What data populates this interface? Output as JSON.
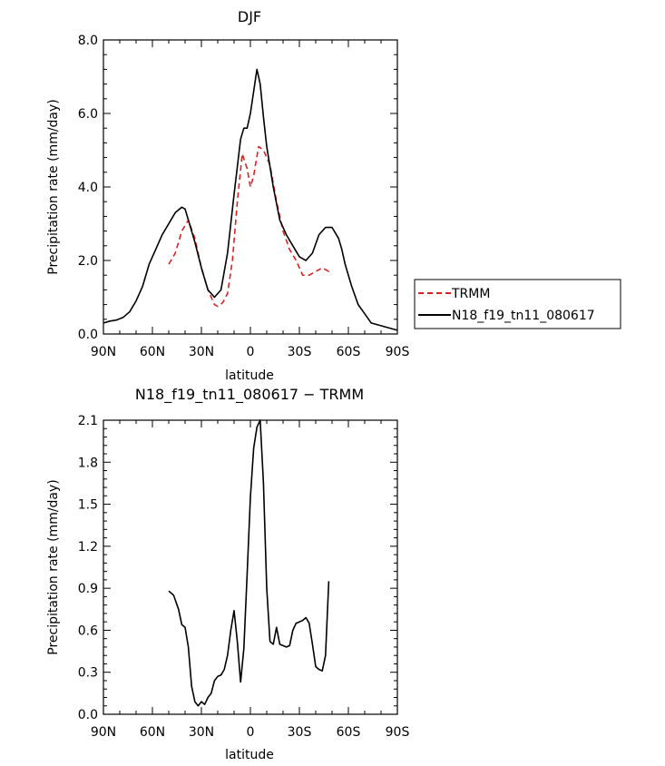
{
  "chart_data": [
    {
      "type": "line",
      "title": "DJF",
      "xlabel": "latitude",
      "ylabel": "Precipitation rate (mm/day)",
      "x_ticks": [
        "90N",
        "60N",
        "30N",
        "0",
        "30S",
        "60S",
        "90S"
      ],
      "x_tick_values": [
        90,
        60,
        30,
        0,
        -30,
        -60,
        -90
      ],
      "x_range": [
        90,
        -90
      ],
      "y_ticks": [
        "0.0",
        "2.0",
        "4.0",
        "6.0",
        "8.0"
      ],
      "y_tick_values": [
        0,
        2,
        4,
        6,
        8
      ],
      "y_range": [
        0,
        8
      ],
      "grid": false,
      "legend_position": "right",
      "series": [
        {
          "name": "TRMM",
          "color": "#e02020",
          "style": "dashed",
          "x": [
            50,
            46,
            42,
            38,
            34,
            30,
            26,
            22,
            20,
            17,
            14,
            11,
            8,
            5,
            2,
            0,
            -2,
            -5,
            -8,
            -12,
            -16,
            -20,
            -24,
            -28,
            -32,
            -36,
            -40,
            -44,
            -48,
            -50
          ],
          "y": [
            1.9,
            2.2,
            2.8,
            3.1,
            2.6,
            1.8,
            1.2,
            0.8,
            0.75,
            0.85,
            1.1,
            2.0,
            3.6,
            4.9,
            4.5,
            4.0,
            4.3,
            5.1,
            5.0,
            4.6,
            3.6,
            2.8,
            2.3,
            2.0,
            1.6,
            1.6,
            1.7,
            1.8,
            1.7,
            1.75
          ]
        },
        {
          "name": "N18_f19_tn11_080617",
          "color": "#000000",
          "style": "solid",
          "x": [
            90,
            86,
            82,
            78,
            74,
            70,
            66,
            62,
            58,
            54,
            50,
            46,
            42,
            40,
            38,
            34,
            30,
            26,
            22,
            18,
            14,
            10,
            6,
            4,
            2,
            0,
            -2,
            -4,
            -6,
            -8,
            -10,
            -14,
            -18,
            -22,
            -26,
            -30,
            -34,
            -38,
            -42,
            -46,
            -50,
            -54,
            -56,
            -58,
            -62,
            -66,
            -70,
            -74,
            -78,
            -82,
            -86,
            -90
          ],
          "y": [
            0.3,
            0.35,
            0.38,
            0.45,
            0.6,
            0.9,
            1.3,
            1.9,
            2.3,
            2.7,
            3.0,
            3.3,
            3.45,
            3.4,
            3.1,
            2.5,
            1.8,
            1.2,
            1.0,
            1.2,
            2.2,
            3.8,
            5.3,
            5.6,
            5.6,
            6.0,
            6.6,
            7.2,
            6.8,
            5.9,
            5.1,
            4.0,
            3.1,
            2.7,
            2.4,
            2.1,
            2.0,
            2.2,
            2.7,
            2.9,
            2.9,
            2.6,
            2.3,
            1.9,
            1.3,
            0.8,
            0.55,
            0.3,
            0.25,
            0.2,
            0.15,
            0.1
          ]
        }
      ]
    },
    {
      "type": "line",
      "title": "N18_f19_tn11_080617 − TRMM",
      "xlabel": "latitude",
      "ylabel": "Precipitation rate (mm/day)",
      "x_ticks": [
        "90N",
        "60N",
        "30N",
        "0",
        "30S",
        "60S",
        "90S"
      ],
      "x_tick_values": [
        90,
        60,
        30,
        0,
        -30,
        -60,
        -90
      ],
      "x_range": [
        90,
        -90
      ],
      "y_ticks": [
        "0.0",
        "0.3",
        "0.6",
        "0.9",
        "1.2",
        "1.5",
        "1.8",
        "2.1"
      ],
      "y_tick_values": [
        0,
        0.3,
        0.6,
        0.9,
        1.2,
        1.5,
        1.8,
        2.1
      ],
      "y_range": [
        0,
        2.1
      ],
      "grid": false,
      "series": [
        {
          "color": "#000000",
          "style": "solid",
          "x": [
            50,
            47,
            44,
            42,
            40,
            38,
            36,
            34,
            32,
            30,
            28,
            26,
            24,
            22,
            20,
            18,
            16,
            14,
            12,
            10,
            8,
            6,
            4,
            2,
            0,
            -2,
            -4,
            -6,
            -8,
            -10,
            -12,
            -14,
            -16,
            -18,
            -20,
            -22,
            -24,
            -26,
            -28,
            -30,
            -32,
            -34,
            -36,
            -38,
            -40,
            -42,
            -44,
            -46,
            -48
          ],
          "y": [
            0.88,
            0.85,
            0.75,
            0.64,
            0.62,
            0.48,
            0.2,
            0.09,
            0.06,
            0.09,
            0.07,
            0.12,
            0.15,
            0.24,
            0.27,
            0.28,
            0.32,
            0.42,
            0.6,
            0.74,
            0.52,
            0.23,
            0.47,
            1.0,
            1.55,
            1.9,
            2.05,
            2.1,
            1.65,
            0.9,
            0.52,
            0.5,
            0.62,
            0.5,
            0.49,
            0.48,
            0.49,
            0.6,
            0.65,
            0.66,
            0.67,
            0.69,
            0.65,
            0.5,
            0.34,
            0.32,
            0.31,
            0.42,
            0.95
          ]
        }
      ]
    }
  ]
}
